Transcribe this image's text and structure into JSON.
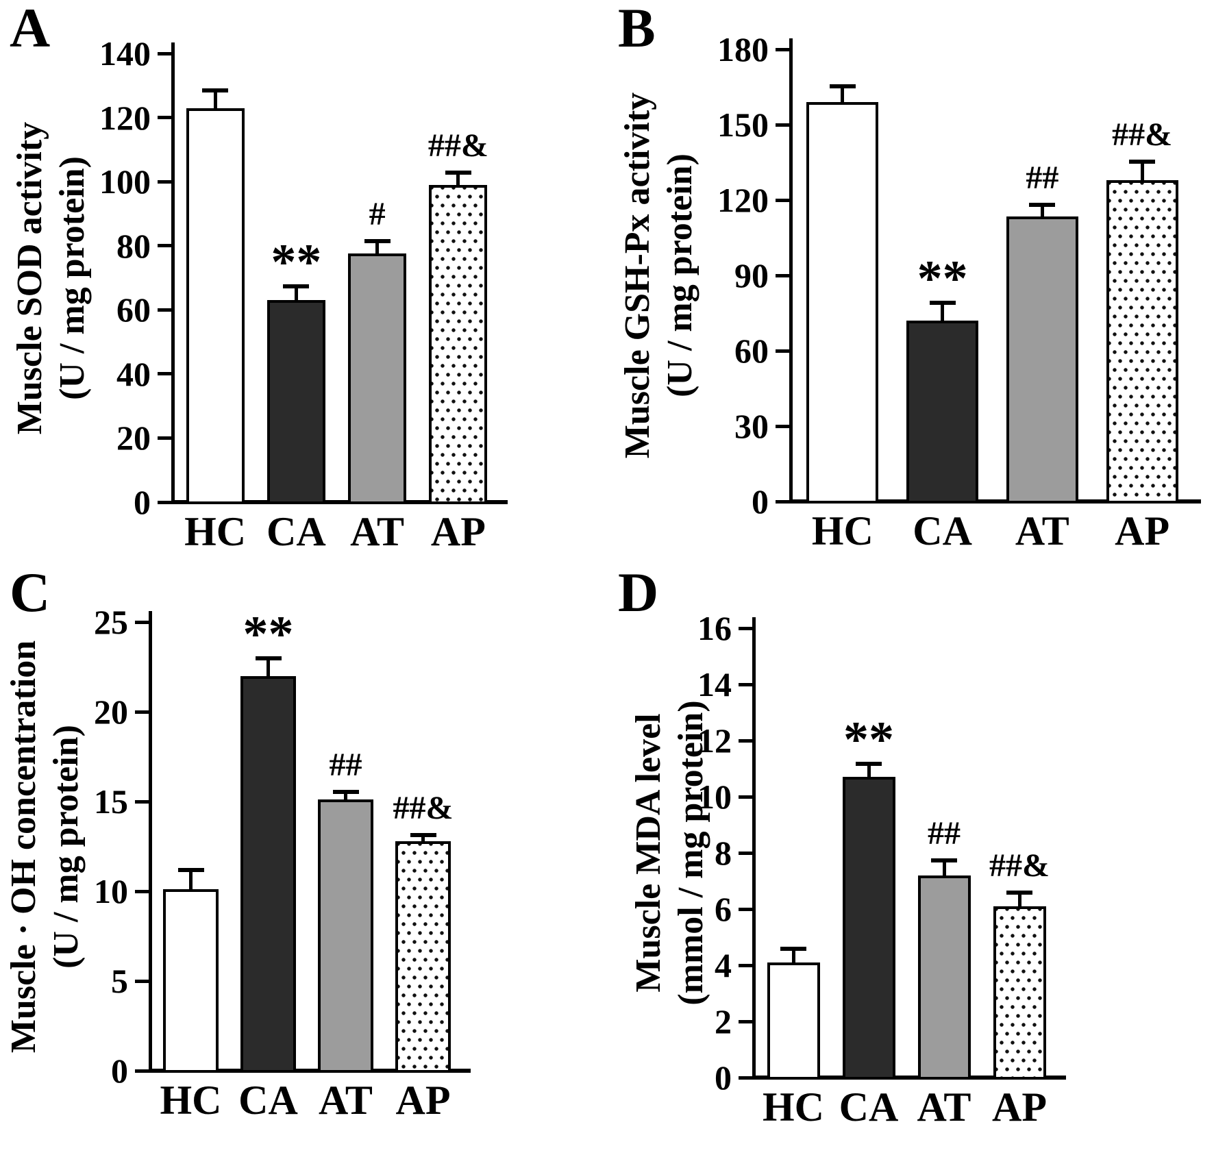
{
  "figure": {
    "panel_letters": [
      "A",
      "B",
      "C",
      "D"
    ],
    "groups": [
      "HC",
      "CA",
      "AT",
      "AP"
    ],
    "colors": {
      "background": "#ffffff",
      "axis": "#000000",
      "bar_border": "#000000",
      "bar_white": "#ffffff",
      "bar_black": "#2b2b2b",
      "bar_gray": "#9c9c9c",
      "dot_pattern": "#111111"
    }
  },
  "chart_data": [
    {
      "panel": "A",
      "type": "bar",
      "ylabel": "Muscle SOD activity",
      "ylabel_unit": "(U / mg protein)",
      "categories": [
        "HC",
        "CA",
        "AT",
        "AP"
      ],
      "values": [
        123,
        63,
        77.5,
        99
      ],
      "errors": [
        6,
        5,
        4.5,
        4.5
      ],
      "annotations": [
        "",
        "**",
        "#",
        "##&"
      ],
      "bar_styles": [
        "white",
        "black",
        "gray",
        "dotted"
      ],
      "ylim": [
        0,
        140
      ],
      "yticks": [
        0,
        20,
        40,
        60,
        80,
        100,
        120,
        140
      ],
      "grid": false,
      "legend": false
    },
    {
      "panel": "B",
      "type": "bar",
      "ylabel": "Muscle GSH-Px activity",
      "ylabel_unit": "(U / mg protein)",
      "categories": [
        "HC",
        "CA",
        "AT",
        "AP"
      ],
      "values": [
        159,
        72,
        113.5,
        128
      ],
      "errors": [
        7,
        8,
        5.5,
        8
      ],
      "annotations": [
        "",
        "**",
        "##",
        "##&"
      ],
      "bar_styles": [
        "white",
        "black",
        "gray",
        "dotted"
      ],
      "ylim": [
        0,
        180
      ],
      "yticks": [
        0,
        30,
        60,
        90,
        120,
        150,
        180
      ],
      "grid": false,
      "legend": false
    },
    {
      "panel": "C",
      "type": "bar",
      "ylabel": "Muscle · OH concentration",
      "ylabel_unit": "(U / mg protein)",
      "categories": [
        "HC",
        "CA",
        "AT",
        "AP"
      ],
      "values": [
        10.1,
        22,
        15.1,
        12.8
      ],
      "errors": [
        1.2,
        1.1,
        0.55,
        0.45
      ],
      "annotations": [
        "",
        "**",
        "##",
        "##&"
      ],
      "bar_styles": [
        "white",
        "black",
        "gray",
        "dotted"
      ],
      "ylim": [
        0,
        25
      ],
      "yticks": [
        0,
        5,
        10,
        15,
        20,
        25
      ],
      "grid": false,
      "legend": false
    },
    {
      "panel": "D",
      "type": "bar",
      "ylabel": "Muscle MDA level",
      "ylabel_unit": "(mmol / mg protein)",
      "categories": [
        "HC",
        "CA",
        "AT",
        "AP"
      ],
      "values": [
        4.1,
        10.7,
        7.2,
        6.1
      ],
      "errors": [
        0.55,
        0.55,
        0.6,
        0.55
      ],
      "annotations": [
        "",
        "**",
        "##",
        "##&"
      ],
      "bar_styles": [
        "white",
        "black",
        "gray",
        "dotted"
      ],
      "ylim": [
        0,
        16
      ],
      "yticks": [
        0,
        2,
        4,
        6,
        8,
        10,
        12,
        14,
        16
      ],
      "grid": false,
      "legend": false
    }
  ]
}
